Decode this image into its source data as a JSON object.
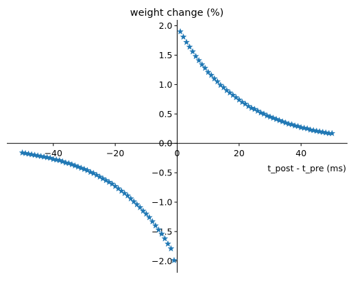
{
  "chart_data": {
    "type": "scatter",
    "title": "weight change (%)",
    "xlabel": "t_post - t_pre (ms)",
    "ylabel": "",
    "xlim": [
      -55,
      55
    ],
    "ylim": [
      -2.2,
      2.1
    ],
    "xticks": [
      -40,
      -20,
      0,
      20,
      40
    ],
    "yticks": [
      -2.0,
      -1.5,
      -1.0,
      -0.5,
      0.0,
      0.5,
      1.0,
      1.5,
      2.0
    ],
    "xtick_labels": [
      "−40",
      "−20",
      "0",
      "20",
      "40"
    ],
    "ytick_labels": [
      "−2.0",
      "−1.5",
      "−1.0",
      "−0.5",
      "0.0",
      "0.5",
      "1.0",
      "1.5",
      "2.0"
    ],
    "marker": "star",
    "grid": false,
    "color": "#1f77b4",
    "spines": "centered at origin",
    "series": [
      {
        "x": [
          1,
          2,
          3,
          4,
          5,
          6,
          7,
          8,
          9,
          10,
          11,
          12,
          13,
          14,
          15,
          16,
          17,
          18,
          19,
          20,
          21,
          22,
          23,
          24,
          25,
          26,
          27,
          28,
          29,
          30,
          31,
          32,
          33,
          34,
          35,
          36,
          37,
          38,
          39,
          40,
          41,
          42,
          43,
          44,
          45,
          46,
          47,
          48,
          49,
          50
        ],
        "y": [
          1.9,
          1.81,
          1.72,
          1.64,
          1.56,
          1.48,
          1.41,
          1.34,
          1.28,
          1.21,
          1.16,
          1.1,
          1.05,
          0.99,
          0.95,
          0.9,
          0.86,
          0.82,
          0.78,
          0.74,
          0.7,
          0.67,
          0.63,
          0.6,
          0.58,
          0.55,
          0.52,
          0.5,
          0.47,
          0.45,
          0.43,
          0.41,
          0.39,
          0.37,
          0.35,
          0.33,
          0.32,
          0.3,
          0.29,
          0.27,
          0.26,
          0.25,
          0.23,
          0.22,
          0.21,
          0.2,
          0.19,
          0.18,
          0.17,
          0.17
        ]
      },
      {
        "x": [
          -50,
          -49,
          -48,
          -47,
          -46,
          -45,
          -44,
          -43,
          -42,
          -41,
          -40,
          -39,
          -38,
          -37,
          -36,
          -35,
          -34,
          -33,
          -32,
          -31,
          -30,
          -29,
          -28,
          -27,
          -26,
          -25,
          -24,
          -23,
          -22,
          -21,
          -20,
          -19,
          -18,
          -17,
          -16,
          -15,
          -14,
          -13,
          -12,
          -11,
          -10,
          -9,
          -8,
          -7,
          -6,
          -5,
          -4,
          -3,
          -2,
          -1
        ],
        "y": [
          -0.16,
          -0.17,
          -0.18,
          -0.19,
          -0.2,
          -0.21,
          -0.22,
          -0.23,
          -0.24,
          -0.25,
          -0.27,
          -0.28,
          -0.29,
          -0.31,
          -0.33,
          -0.34,
          -0.36,
          -0.38,
          -0.4,
          -0.42,
          -0.44,
          -0.46,
          -0.49,
          -0.51,
          -0.54,
          -0.57,
          -0.6,
          -0.63,
          -0.66,
          -0.69,
          -0.73,
          -0.77,
          -0.81,
          -0.85,
          -0.89,
          -0.94,
          -0.99,
          -1.04,
          -1.09,
          -1.15,
          -1.2,
          -1.26,
          -1.33,
          -1.4,
          -1.47,
          -1.54,
          -1.62,
          -1.71,
          -1.79,
          -1.99
        ]
      }
    ]
  }
}
